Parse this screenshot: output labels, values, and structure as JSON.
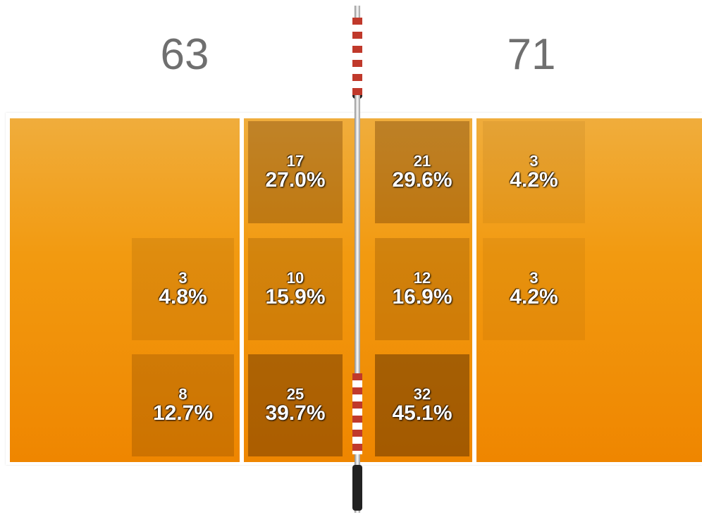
{
  "teams": [
    {
      "total": 63,
      "zones": [
        {
          "count": 3,
          "percent": "4.8%"
        },
        {
          "count": 8,
          "percent": "12.7%"
        },
        {
          "count": 17,
          "percent": "27.0%"
        },
        {
          "count": 10,
          "percent": "15.9%"
        },
        {
          "count": 25,
          "percent": "39.7%"
        }
      ]
    },
    {
      "total": 71,
      "zones": [
        {
          "count": 21,
          "percent": "29.6%"
        },
        {
          "count": 12,
          "percent": "16.9%"
        },
        {
          "count": 32,
          "percent": "45.1%"
        },
        {
          "count": 3,
          "percent": "4.2%"
        },
        {
          "count": 3,
          "percent": "4.2%"
        }
      ]
    }
  ]
}
